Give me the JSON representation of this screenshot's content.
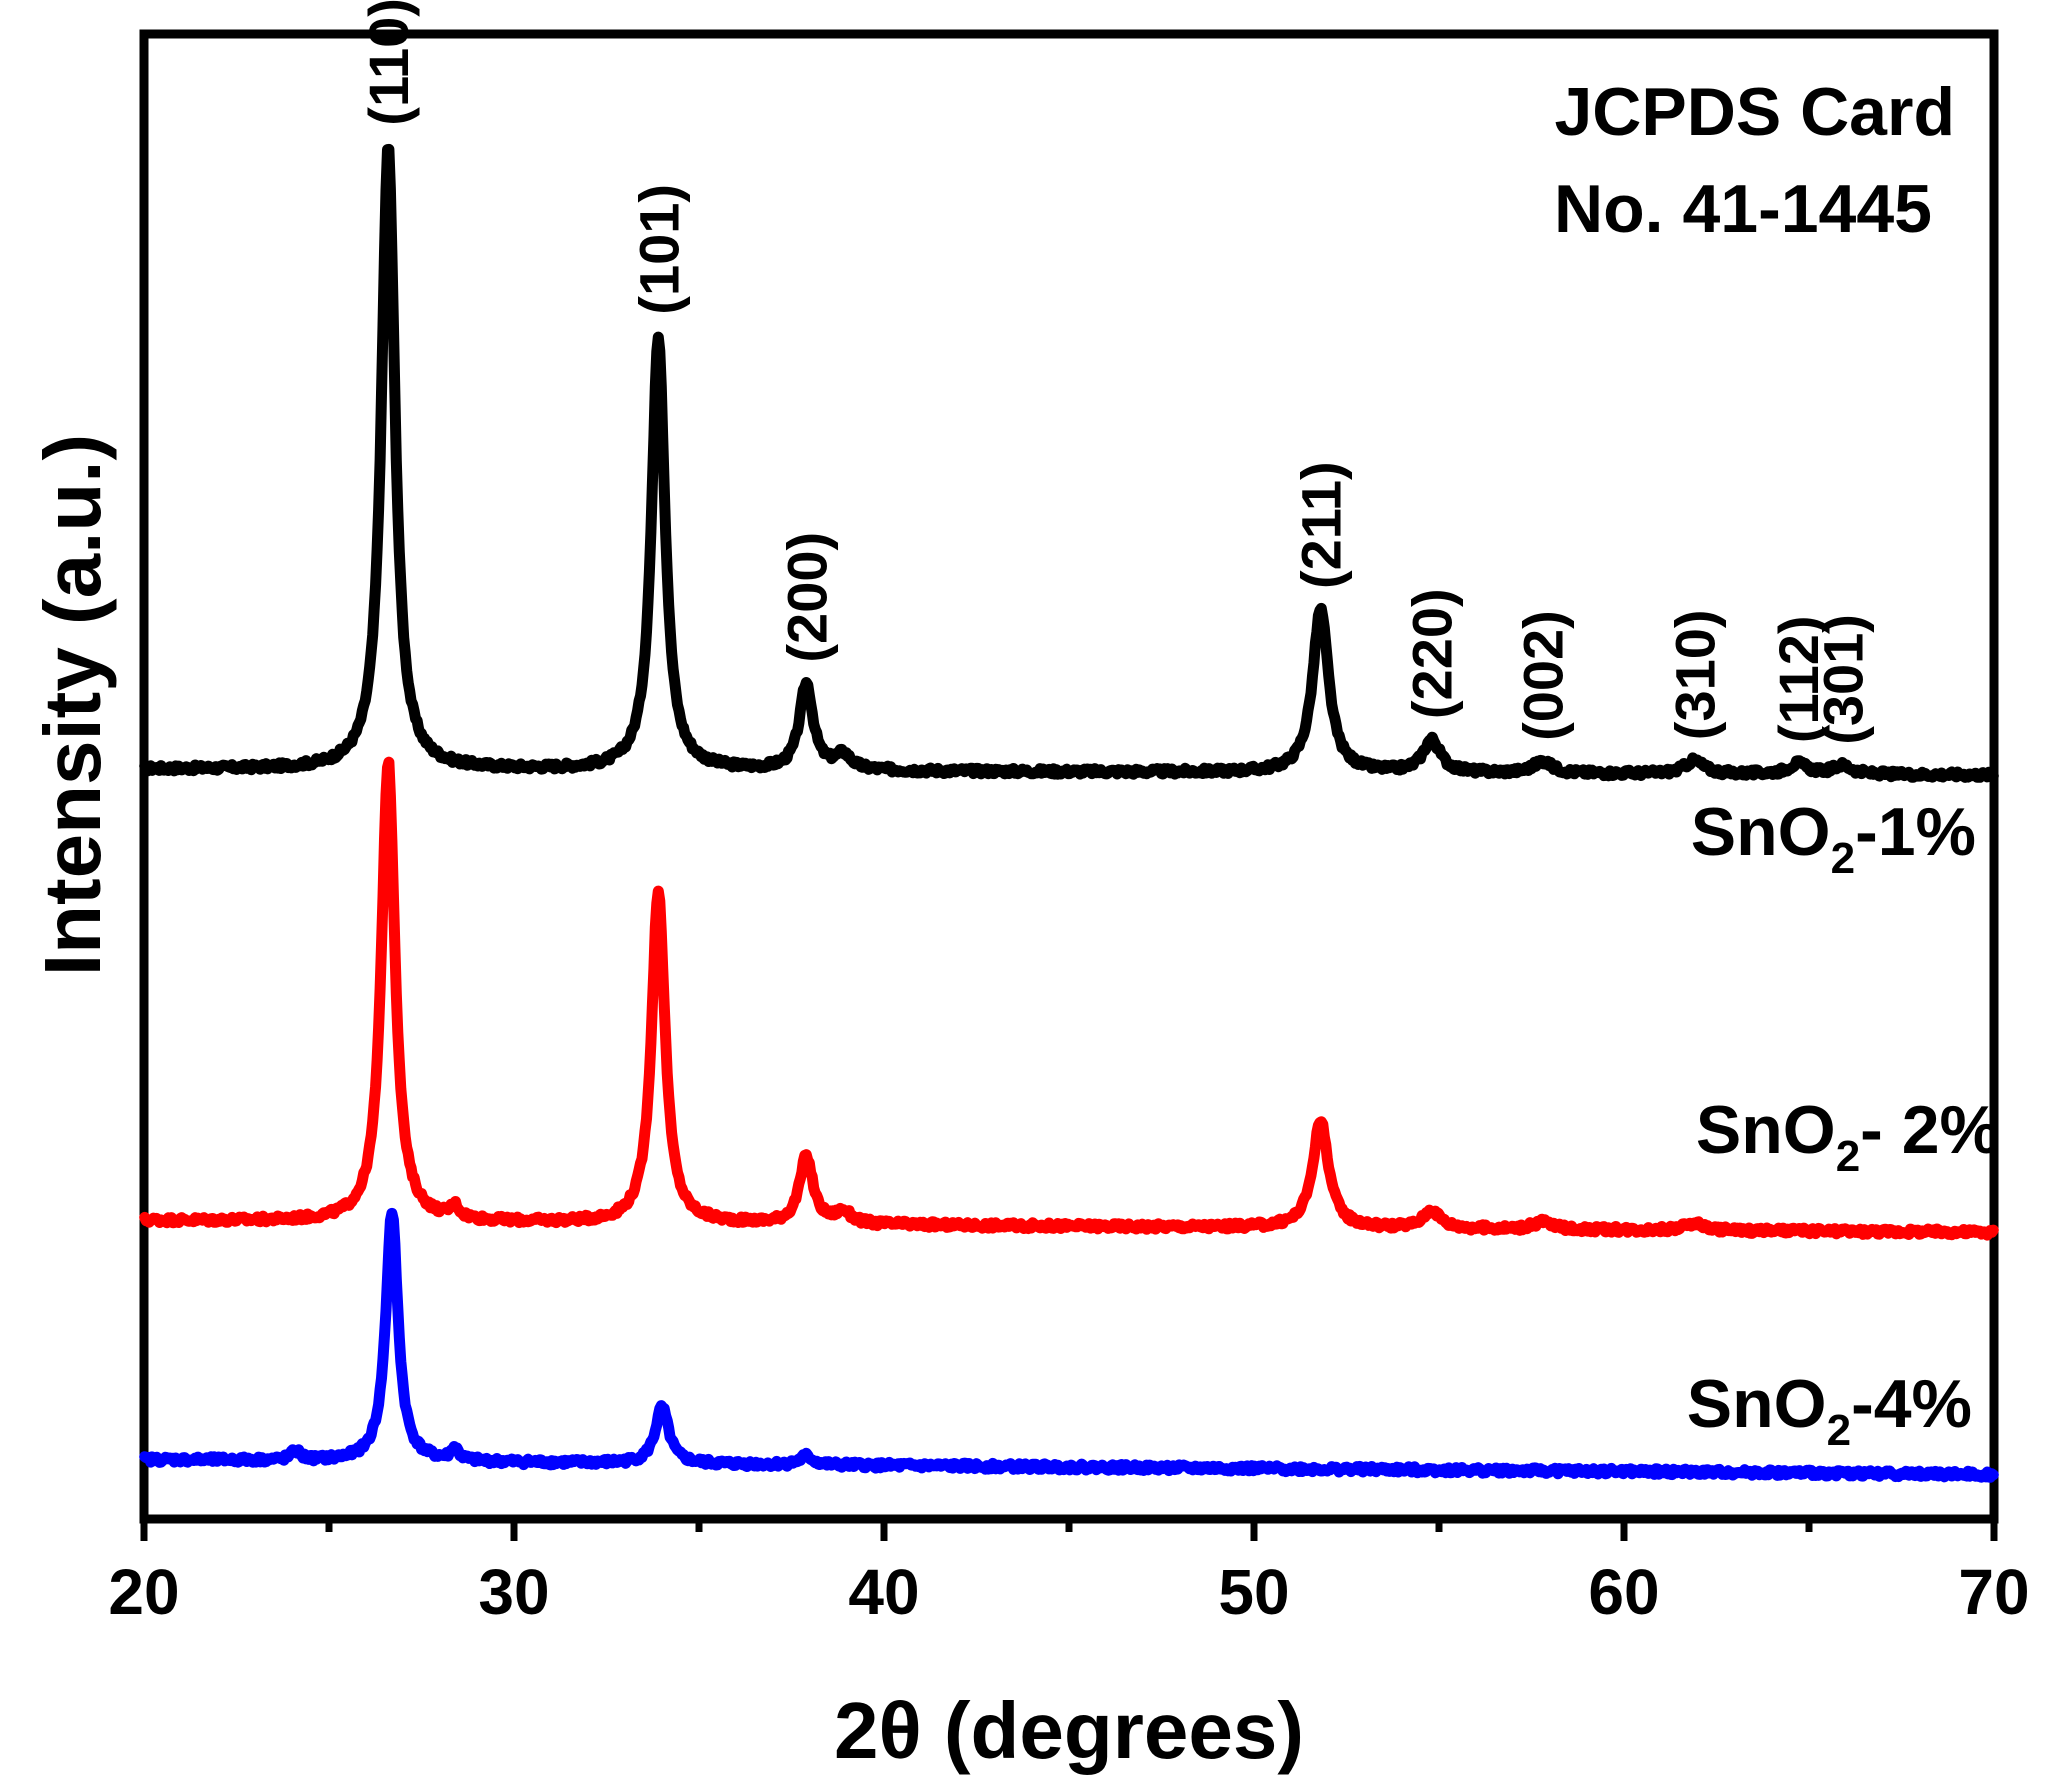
{
  "chart_data": {
    "type": "line",
    "title": "",
    "xlabel": "2θ (degrees)",
    "ylabel": "Intensity (a.u.)",
    "xlim": [
      20,
      70
    ],
    "ylim": [
      0,
      1
    ],
    "grid": false,
    "x_ticks": [
      20,
      30,
      40,
      50,
      60,
      70
    ],
    "annotation": {
      "line1": "JCPDS Card",
      "line2": "No. 41-1445",
      "position": "top-right"
    },
    "peak_labels": [
      {
        "label": "(110)",
        "x": 26.6
      },
      {
        "label": "(101)",
        "x": 33.9
      },
      {
        "label": "(200)",
        "x": 37.9
      },
      {
        "label": "(211)",
        "x": 51.8
      },
      {
        "label": "(220)",
        "x": 54.8
      },
      {
        "label": "(002)",
        "x": 57.8
      },
      {
        "label": "(310)",
        "x": 61.9
      },
      {
        "label": "(112)",
        "x": 64.7
      },
      {
        "label": "(301)",
        "x": 65.9
      }
    ],
    "series": [
      {
        "name": "SnO2-1%",
        "label_main": "SnO",
        "label_sub": "2",
        "label_tail": "-1%",
        "color": "#000000",
        "baseline": 0.505,
        "slope": -0.004,
        "peaks": [
          {
            "x": 26.6,
            "height": 0.42,
            "width": 0.22
          },
          {
            "x": 33.9,
            "height": 0.293,
            "width": 0.22
          },
          {
            "x": 37.9,
            "height": 0.058,
            "width": 0.22
          },
          {
            "x": 38.9,
            "height": 0.01,
            "width": 0.25
          },
          {
            "x": 51.8,
            "height": 0.11,
            "width": 0.26
          },
          {
            "x": 54.8,
            "height": 0.022,
            "width": 0.28
          },
          {
            "x": 57.8,
            "height": 0.008,
            "width": 0.3
          },
          {
            "x": 61.9,
            "height": 0.009,
            "width": 0.3
          },
          {
            "x": 64.7,
            "height": 0.007,
            "width": 0.3
          },
          {
            "x": 65.9,
            "height": 0.006,
            "width": 0.3
          }
        ]
      },
      {
        "name": "SnO2- 2%",
        "label_main": "SnO",
        "label_sub": "2",
        "label_tail": "- 2%",
        "color": "#ff0000",
        "baseline": 0.201,
        "slope": -0.008,
        "peaks": [
          {
            "x": 26.6,
            "height": 0.31,
            "width": 0.22
          },
          {
            "x": 33.9,
            "height": 0.224,
            "width": 0.22
          },
          {
            "x": 37.9,
            "height": 0.045,
            "width": 0.22
          },
          {
            "x": 38.9,
            "height": 0.008,
            "width": 0.25
          },
          {
            "x": 28.4,
            "height": 0.008,
            "width": 0.15
          },
          {
            "x": 51.8,
            "height": 0.072,
            "width": 0.26
          },
          {
            "x": 54.8,
            "height": 0.012,
            "width": 0.28
          },
          {
            "x": 57.8,
            "height": 0.005,
            "width": 0.3
          },
          {
            "x": 61.9,
            "height": 0.005,
            "width": 0.3
          }
        ]
      },
      {
        "name": "SnO2-4%",
        "label_main": "SnO",
        "label_sub": "2",
        "label_tail": "-4%",
        "color": "#0000ff",
        "baseline": 0.04,
        "slope": -0.01,
        "peaks": [
          {
            "x": 26.7,
            "height": 0.168,
            "width": 0.2
          },
          {
            "x": 34.0,
            "height": 0.038,
            "width": 0.22
          },
          {
            "x": 37.9,
            "height": 0.006,
            "width": 0.2
          },
          {
            "x": 24.1,
            "height": 0.006,
            "width": 0.15
          },
          {
            "x": 28.4,
            "height": 0.008,
            "width": 0.12
          }
        ]
      }
    ]
  }
}
